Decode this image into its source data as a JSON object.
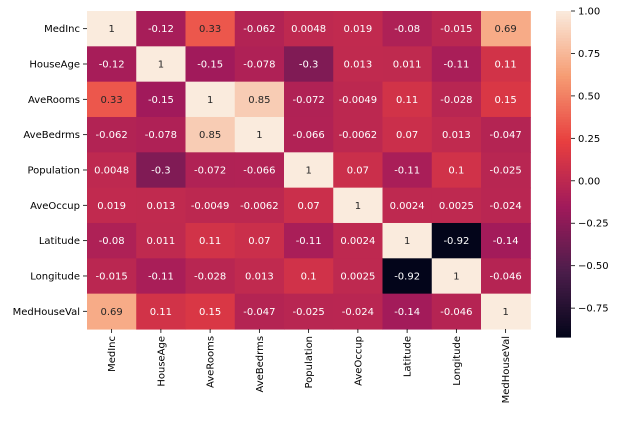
{
  "chart_data": {
    "type": "heatmap",
    "title": "",
    "xlabel": "",
    "ylabel": "",
    "x_labels": [
      "MedInc",
      "HouseAge",
      "AveRooms",
      "AveBedrms",
      "Population",
      "AveOccup",
      "Latitude",
      "Longitude",
      "MedHouseVal"
    ],
    "y_labels": [
      "MedInc",
      "HouseAge",
      "AveRooms",
      "AveBedrms",
      "Population",
      "AveOccup",
      "Latitude",
      "Longitude",
      "MedHouseVal"
    ],
    "values": [
      [
        1,
        -0.12,
        0.33,
        -0.062,
        0.0048,
        0.019,
        -0.08,
        -0.015,
        0.69
      ],
      [
        -0.12,
        1,
        -0.15,
        -0.078,
        -0.3,
        0.013,
        0.011,
        -0.11,
        0.11
      ],
      [
        0.33,
        -0.15,
        1,
        0.85,
        -0.072,
        -0.0049,
        0.11,
        -0.028,
        0.15
      ],
      [
        -0.062,
        -0.078,
        0.85,
        1,
        -0.066,
        -0.0062,
        0.07,
        0.013,
        -0.047
      ],
      [
        0.0048,
        -0.3,
        -0.072,
        -0.066,
        1,
        0.07,
        -0.11,
        0.1,
        -0.025
      ],
      [
        0.019,
        0.013,
        -0.0049,
        -0.0062,
        0.07,
        1,
        0.0024,
        0.0025,
        -0.024
      ],
      [
        -0.08,
        0.011,
        0.11,
        0.07,
        -0.11,
        0.0024,
        1,
        -0.92,
        -0.14
      ],
      [
        -0.015,
        -0.11,
        -0.028,
        0.013,
        0.1,
        0.0025,
        -0.92,
        1,
        -0.046
      ],
      [
        0.69,
        0.11,
        0.15,
        -0.047,
        -0.025,
        -0.024,
        -0.14,
        -0.046,
        1
      ]
    ],
    "annotations": [
      [
        "1",
        "-0.12",
        "0.33",
        "-0.062",
        "0.0048",
        "0.019",
        "-0.08",
        "-0.015",
        "0.69"
      ],
      [
        "-0.12",
        "1",
        "-0.15",
        "-0.078",
        "-0.3",
        "0.013",
        "0.011",
        "-0.11",
        "0.11"
      ],
      [
        "0.33",
        "-0.15",
        "1",
        "0.85",
        "-0.072",
        "-0.0049",
        "0.11",
        "-0.028",
        "0.15"
      ],
      [
        "-0.062",
        "-0.078",
        "0.85",
        "1",
        "-0.066",
        "-0.0062",
        "0.07",
        "0.013",
        "-0.047"
      ],
      [
        "0.0048",
        "-0.3",
        "-0.072",
        "-0.066",
        "1",
        "0.07",
        "-0.11",
        "0.1",
        "-0.025"
      ],
      [
        "0.019",
        "0.013",
        "-0.0049",
        "-0.0062",
        "0.07",
        "1",
        "0.0024",
        "0.0025",
        "-0.024"
      ],
      [
        "-0.08",
        "0.011",
        "0.11",
        "0.07",
        "-0.11",
        "0.0024",
        "1",
        "-0.92",
        "-0.14"
      ],
      [
        "-0.015",
        "-0.11",
        "-0.028",
        "0.013",
        "0.1",
        "0.0025",
        "-0.92",
        "1",
        "-0.046"
      ],
      [
        "0.69",
        "0.11",
        "0.15",
        "-0.047",
        "-0.025",
        "-0.024",
        "-0.14",
        "-0.046",
        "1"
      ]
    ],
    "colorbar": {
      "range": [
        -0.92,
        1
      ],
      "ticks": [
        1.0,
        0.75,
        0.5,
        0.25,
        0.0,
        -0.25,
        -0.5,
        -0.75
      ],
      "tick_labels": [
        "1.00",
        "0.75",
        "0.50",
        "0.25",
        "0.00",
        "−0.25",
        "−0.50",
        "−0.75"
      ],
      "colormap": "rocket",
      "colors": [
        "#03051a",
        "#4c1d4b",
        "#a11a5b",
        "#e83f3f",
        "#f69c73",
        "#faebdd"
      ]
    },
    "grid": false,
    "legend": "colorbar-right"
  }
}
